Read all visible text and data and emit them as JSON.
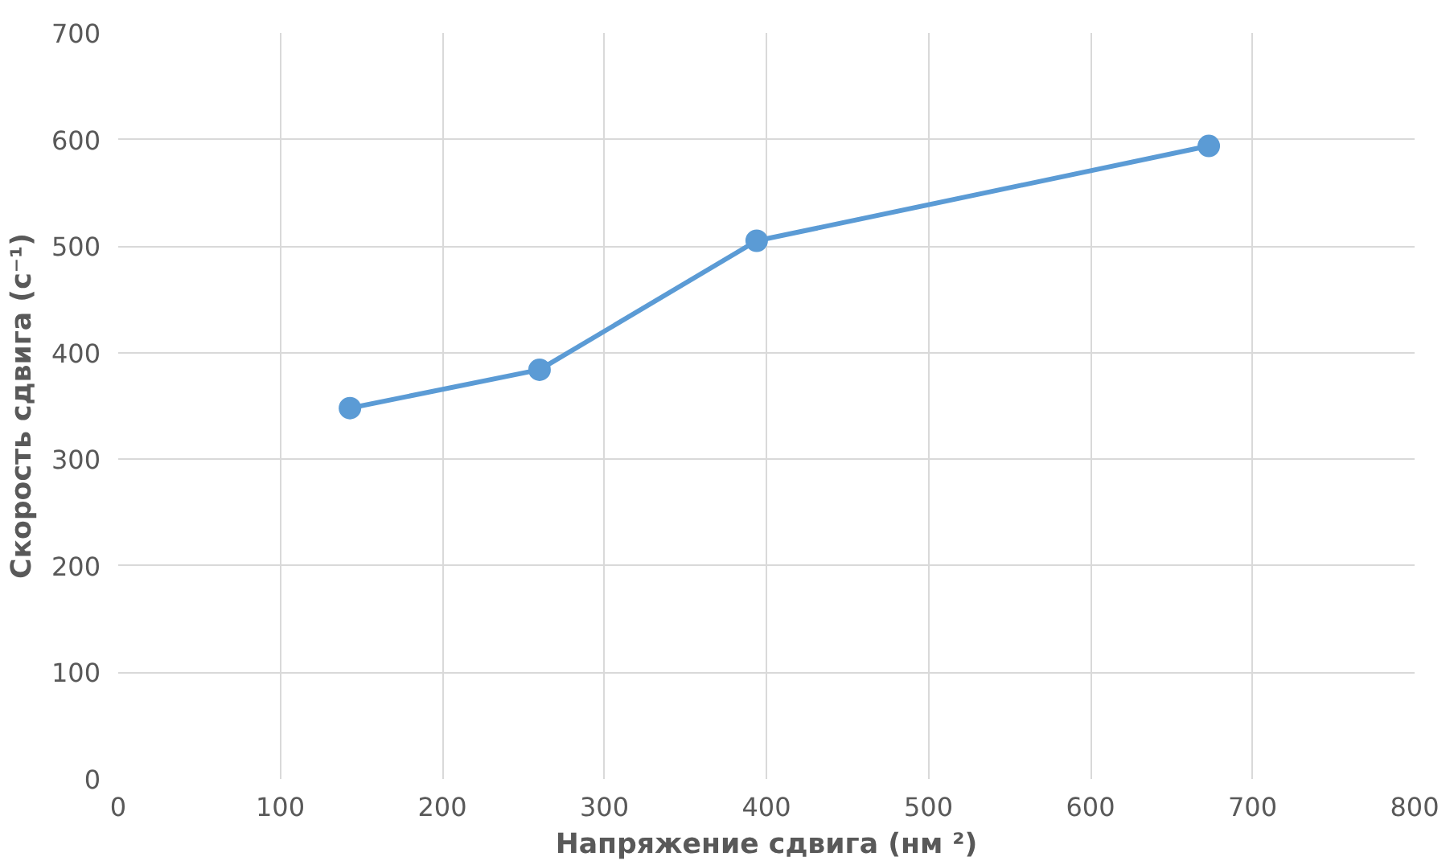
{
  "chart_data": {
    "type": "line",
    "xlabel": "Напряжение сдвига (нм ²)",
    "ylabel": "Скорость сдвига (с⁻¹)",
    "x": [
      143,
      260,
      394,
      673
    ],
    "series": [
      {
        "color": "#5b9bd5",
        "values": [
          348,
          384,
          505,
          594
        ]
      }
    ],
    "xlim": [
      0,
      800
    ],
    "xticks": [
      0,
      100,
      200,
      300,
      400,
      500,
      600,
      700,
      800
    ],
    "ylim": [
      0,
      700
    ],
    "yticks": [
      0,
      100,
      200,
      300,
      400,
      500,
      600,
      700
    ],
    "grid": true,
    "marker": "circle",
    "line_style": "solid"
  }
}
